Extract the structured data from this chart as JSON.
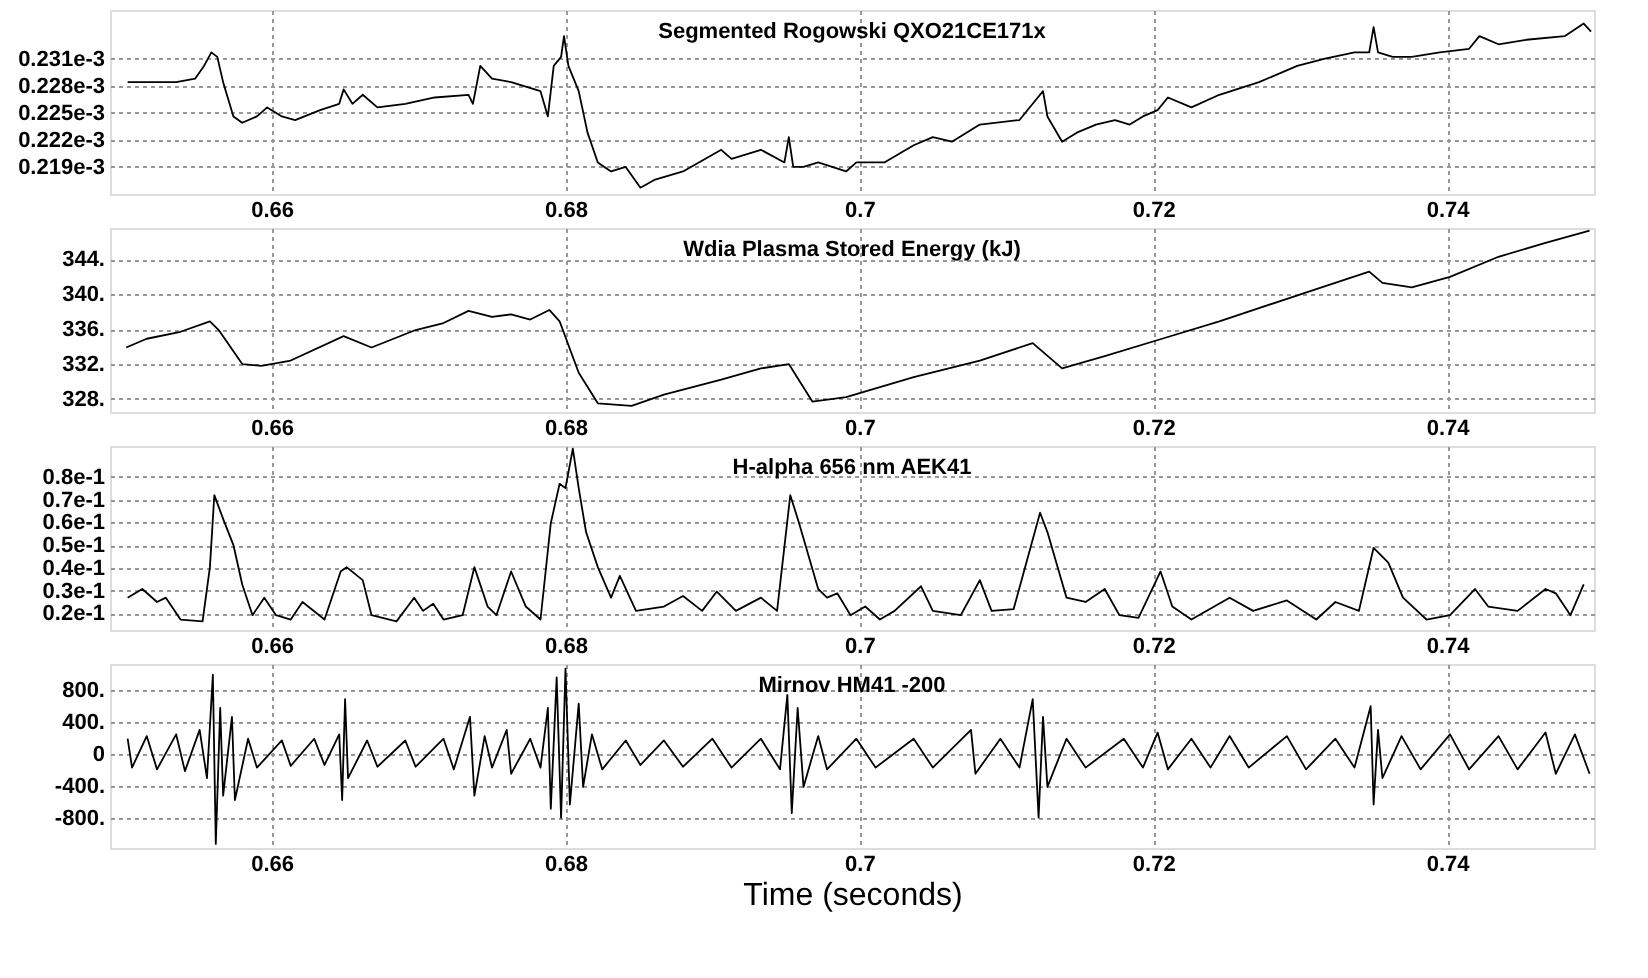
{
  "chart_data": [
    {
      "type": "line",
      "title": "Segmented Rogowski QXO21CE171x",
      "color": "#000000",
      "grid": true,
      "line_style": "solid",
      "marker": "none",
      "xlim": [
        0.649,
        0.75
      ],
      "xticks": [
        0.66,
        0.68,
        0.7,
        0.72,
        0.74
      ],
      "ylim": [
        0.000216,
        0.0002364
      ],
      "yticks": [
        {
          "value": 0.000219,
          "label": "0.219e-3"
        },
        {
          "value": 0.000222,
          "label": "0.222e-3"
        },
        {
          "value": 0.000225,
          "label": "0.225e-3"
        },
        {
          "value": 0.000228,
          "label": "0.228e-3"
        },
        {
          "value": 0.000231,
          "label": "0.231e-3"
        }
      ],
      "x": [
        0.6502,
        0.6535,
        0.6548,
        0.6554,
        0.6559,
        0.6563,
        0.6567,
        0.6574,
        0.658,
        0.659,
        0.6597,
        0.6607,
        0.6616,
        0.6633,
        0.6646,
        0.6649,
        0.6655,
        0.6662,
        0.6672,
        0.6691,
        0.6711,
        0.6734,
        0.6737,
        0.6742,
        0.675,
        0.6763,
        0.6783,
        0.6788,
        0.6792,
        0.6797,
        0.6799,
        0.6802,
        0.6809,
        0.6815,
        0.6822,
        0.6831,
        0.6841,
        0.6851,
        0.6861,
        0.688,
        0.6906,
        0.6913,
        0.6933,
        0.6949,
        0.6952,
        0.6955,
        0.6962,
        0.6972,
        0.6991,
        0.6998,
        0.7017,
        0.7037,
        0.705,
        0.7063,
        0.7082,
        0.7109,
        0.7118,
        0.7125,
        0.7128,
        0.7138,
        0.7148,
        0.7161,
        0.7174,
        0.7184,
        0.7193,
        0.7203,
        0.721,
        0.7226,
        0.7245,
        0.7272,
        0.7298,
        0.7317,
        0.7337,
        0.7347,
        0.735,
        0.7353,
        0.7363,
        0.7376,
        0.7395,
        0.7415,
        0.7422,
        0.7435,
        0.7454,
        0.748,
        0.7493,
        0.7498
      ],
      "values": [
        0.0002284,
        0.0002284,
        0.0002288,
        0.0002302,
        0.0002317,
        0.0002312,
        0.0002284,
        0.0002246,
        0.0002239,
        0.0002246,
        0.0002256,
        0.0002246,
        0.0002242,
        0.0002253,
        0.000226,
        0.0002276,
        0.000226,
        0.000227,
        0.0002256,
        0.000226,
        0.0002267,
        0.000227,
        0.000226,
        0.0002302,
        0.0002288,
        0.0002284,
        0.0002274,
        0.0002246,
        0.0002302,
        0.0002312,
        0.0002335,
        0.0002302,
        0.0002274,
        0.0002228,
        0.0002195,
        0.0002185,
        0.000219,
        0.0002167,
        0.0002176,
        0.0002185,
        0.0002209,
        0.0002199,
        0.0002209,
        0.0002195,
        0.0002223,
        0.000219,
        0.000219,
        0.0002195,
        0.0002185,
        0.0002195,
        0.0002195,
        0.0002214,
        0.0002223,
        0.0002218,
        0.0002237,
        0.0002242,
        0.000226,
        0.0002274,
        0.0002246,
        0.0002218,
        0.0002228,
        0.0002237,
        0.0002242,
        0.0002237,
        0.0002246,
        0.0002253,
        0.0002267,
        0.0002256,
        0.000227,
        0.0002284,
        0.0002302,
        0.000231,
        0.0002317,
        0.0002317,
        0.0002345,
        0.0002317,
        0.0002312,
        0.0002312,
        0.0002317,
        0.0002321,
        0.0002335,
        0.0002326,
        0.0002331,
        0.0002335,
        0.0002349,
        0.000234
      ]
    },
    {
      "type": "line",
      "title": "Wdia  Plasma Stored Energy (kJ)",
      "color": "#000000",
      "grid": true,
      "line_style": "solid",
      "marker": "none",
      "xlim": [
        0.649,
        0.75
      ],
      "xticks": [
        0.66,
        0.68,
        0.7,
        0.72,
        0.74
      ],
      "ylim": [
        326.5,
        347.6
      ],
      "yticks": [
        {
          "value": 328,
          "label": "328."
        },
        {
          "value": 332,
          "label": "332."
        },
        {
          "value": 336,
          "label": "336."
        },
        {
          "value": 340,
          "label": "340."
        },
        {
          "value": 344,
          "label": "344."
        }
      ],
      "x": [
        0.6501,
        0.6515,
        0.6538,
        0.6558,
        0.6564,
        0.658,
        0.6593,
        0.6613,
        0.6649,
        0.6668,
        0.6698,
        0.6717,
        0.6734,
        0.675,
        0.6763,
        0.6776,
        0.6789,
        0.6796,
        0.6809,
        0.6822,
        0.6845,
        0.6867,
        0.6906,
        0.6933,
        0.6952,
        0.6968,
        0.6991,
        0.7037,
        0.7082,
        0.7118,
        0.7138,
        0.7167,
        0.7206,
        0.7245,
        0.7311,
        0.7347,
        0.7356,
        0.7376,
        0.7402,
        0.7435,
        0.7467,
        0.7497
      ],
      "values": [
        333.9,
        334.9,
        335.7,
        336.9,
        335.9,
        332.0,
        331.8,
        332.4,
        335.2,
        333.9,
        335.9,
        336.7,
        338.1,
        337.4,
        337.7,
        337.1,
        338.2,
        336.9,
        331.0,
        327.5,
        327.2,
        328.5,
        330.2,
        331.5,
        332.0,
        327.7,
        328.2,
        330.5,
        332.4,
        334.4,
        331.5,
        332.9,
        334.9,
        336.9,
        340.6,
        342.6,
        341.3,
        340.8,
        342.0,
        344.3,
        345.9,
        347.3
      ]
    },
    {
      "type": "line",
      "title": "H-alpha 656 nm  AEK41",
      "color": "#000000",
      "grid": true,
      "line_style": "solid",
      "marker": "none",
      "xlim": [
        0.649,
        0.75
      ],
      "xticks": [
        0.66,
        0.68,
        0.7,
        0.72,
        0.74
      ],
      "ylim": [
        0.0127,
        0.0935
      ],
      "yticks": [
        {
          "value": 0.02,
          "label": "0.2e-1"
        },
        {
          "value": 0.03,
          "label": "0.3e-1"
        },
        {
          "value": 0.04,
          "label": "0.4e-1"
        },
        {
          "value": 0.05,
          "label": "0.5e-1"
        },
        {
          "value": 0.06,
          "label": "0.6e-1"
        },
        {
          "value": 0.07,
          "label": "0.7e-1"
        },
        {
          "value": 0.08,
          "label": "0.8e-1"
        }
      ],
      "x": [
        0.6502,
        0.6512,
        0.6522,
        0.6528,
        0.6538,
        0.6553,
        0.6558,
        0.6561,
        0.6567,
        0.6574,
        0.658,
        0.6587,
        0.6595,
        0.6603,
        0.6613,
        0.6621,
        0.6636,
        0.6647,
        0.6651,
        0.6662,
        0.6668,
        0.6685,
        0.6697,
        0.6703,
        0.671,
        0.6717,
        0.673,
        0.6738,
        0.6747,
        0.6753,
        0.6763,
        0.6773,
        0.6783,
        0.679,
        0.6796,
        0.68,
        0.6805,
        0.6809,
        0.6814,
        0.6822,
        0.6831,
        0.6837,
        0.6848,
        0.6867,
        0.688,
        0.6893,
        0.6903,
        0.6916,
        0.6933,
        0.6944,
        0.6953,
        0.6959,
        0.6972,
        0.6978,
        0.6985,
        0.6994,
        0.7004,
        0.7014,
        0.7024,
        0.7042,
        0.705,
        0.7069,
        0.7082,
        0.709,
        0.7105,
        0.7123,
        0.7128,
        0.7141,
        0.7154,
        0.7167,
        0.7177,
        0.719,
        0.7205,
        0.7213,
        0.7226,
        0.7252,
        0.7268,
        0.7291,
        0.7311,
        0.7324,
        0.734,
        0.735,
        0.736,
        0.737,
        0.7386,
        0.7402,
        0.7419,
        0.7428,
        0.7448,
        0.7467,
        0.7474,
        0.7484,
        0.7493
      ],
      "values": [
        0.0269,
        0.0307,
        0.025,
        0.0269,
        0.0173,
        0.0165,
        0.0403,
        0.0719,
        0.0615,
        0.05,
        0.0327,
        0.0192,
        0.0269,
        0.0192,
        0.0173,
        0.025,
        0.0173,
        0.0384,
        0.0403,
        0.0346,
        0.0192,
        0.0165,
        0.0269,
        0.0211,
        0.0242,
        0.0173,
        0.0192,
        0.0403,
        0.023,
        0.0192,
        0.0384,
        0.023,
        0.0173,
        0.0596,
        0.0769,
        0.075,
        0.0923,
        0.075,
        0.0557,
        0.0403,
        0.0269,
        0.0365,
        0.0211,
        0.023,
        0.0276,
        0.0211,
        0.0296,
        0.0211,
        0.0269,
        0.0211,
        0.0719,
        0.0596,
        0.0307,
        0.0269,
        0.0288,
        0.0192,
        0.023,
        0.0173,
        0.0211,
        0.0319,
        0.0211,
        0.0192,
        0.0346,
        0.0211,
        0.0219,
        0.0642,
        0.0557,
        0.0269,
        0.025,
        0.0307,
        0.0192,
        0.018,
        0.0384,
        0.023,
        0.0173,
        0.0269,
        0.0211,
        0.0257,
        0.0173,
        0.025,
        0.0211,
        0.0488,
        0.0423,
        0.0269,
        0.0173,
        0.0192,
        0.0307,
        0.023,
        0.0211,
        0.0307,
        0.0288,
        0.0192,
        0.0327
      ]
    },
    {
      "type": "line",
      "title": "Mirnov HM41 -200",
      "xlabel": "Time (seconds)",
      "color": "#000000",
      "grid": true,
      "line_style": "solid",
      "marker": "none",
      "xlim": [
        0.649,
        0.75
      ],
      "xticks": [
        0.66,
        0.68,
        0.7,
        0.72,
        0.74
      ],
      "ylim": [
        -1180,
        1120
      ],
      "yticks": [
        {
          "value": -800,
          "label": "-800."
        },
        {
          "value": -400,
          "label": "-400."
        },
        0,
        {
          "value": 400,
          "label": "400."
        },
        {
          "value": 800,
          "label": "800."
        }
      ],
      "x": [
        0.6502,
        0.6505,
        0.6515,
        0.6522,
        0.6535,
        0.6541,
        0.6551,
        0.6556,
        0.656,
        0.6562,
        0.6565,
        0.6567,
        0.6573,
        0.6575,
        0.6584,
        0.659,
        0.6607,
        0.6613,
        0.6629,
        0.6636,
        0.6646,
        0.6648,
        0.665,
        0.6652,
        0.6665,
        0.6672,
        0.6691,
        0.6698,
        0.6717,
        0.6724,
        0.6735,
        0.6738,
        0.6745,
        0.675,
        0.676,
        0.6763,
        0.6776,
        0.6783,
        0.6788,
        0.679,
        0.6794,
        0.6797,
        0.68,
        0.6803,
        0.6809,
        0.6812,
        0.6818,
        0.6825,
        0.6841,
        0.6851,
        0.6867,
        0.688,
        0.69,
        0.6913,
        0.6933,
        0.6946,
        0.6951,
        0.6954,
        0.6958,
        0.6962,
        0.6972,
        0.6978,
        0.6998,
        0.7011,
        0.7037,
        0.705,
        0.7076,
        0.7079,
        0.7096,
        0.7109,
        0.7118,
        0.7122,
        0.7125,
        0.7128,
        0.7141,
        0.7154,
        0.718,
        0.7193,
        0.7203,
        0.721,
        0.7226,
        0.7239,
        0.7252,
        0.7265,
        0.7291,
        0.7304,
        0.7324,
        0.7337,
        0.7348,
        0.735,
        0.7353,
        0.7356,
        0.7369,
        0.7382,
        0.7402,
        0.7415,
        0.7435,
        0.7448,
        0.7467,
        0.7474,
        0.7487,
        0.7497
      ],
      "values": [
        186,
        -175,
        219,
        -197,
        241,
        -219,
        296,
        -307,
        986,
        -1129,
        570,
        -526,
        460,
        -581,
        186,
        -175,
        164,
        -153,
        186,
        -142,
        241,
        -581,
        680,
        -307,
        164,
        -164,
        164,
        -164,
        186,
        -197,
        460,
        -526,
        219,
        -175,
        296,
        -252,
        186,
        -175,
        570,
        -690,
        954,
        -800,
        1063,
        -636,
        625,
        -416,
        241,
        -197,
        164,
        -142,
        164,
        -164,
        186,
        -175,
        186,
        -197,
        734,
        -745,
        570,
        -416,
        219,
        -197,
        186,
        -175,
        186,
        -175,
        296,
        -252,
        186,
        -175,
        680,
        -800,
        460,
        -416,
        186,
        -175,
        186,
        -175,
        263,
        -197,
        186,
        -175,
        219,
        -175,
        219,
        -197,
        186,
        -175,
        592,
        -636,
        296,
        -307,
        219,
        -197,
        241,
        -197,
        219,
        -197,
        263,
        -252,
        241,
        -252
      ]
    }
  ]
}
